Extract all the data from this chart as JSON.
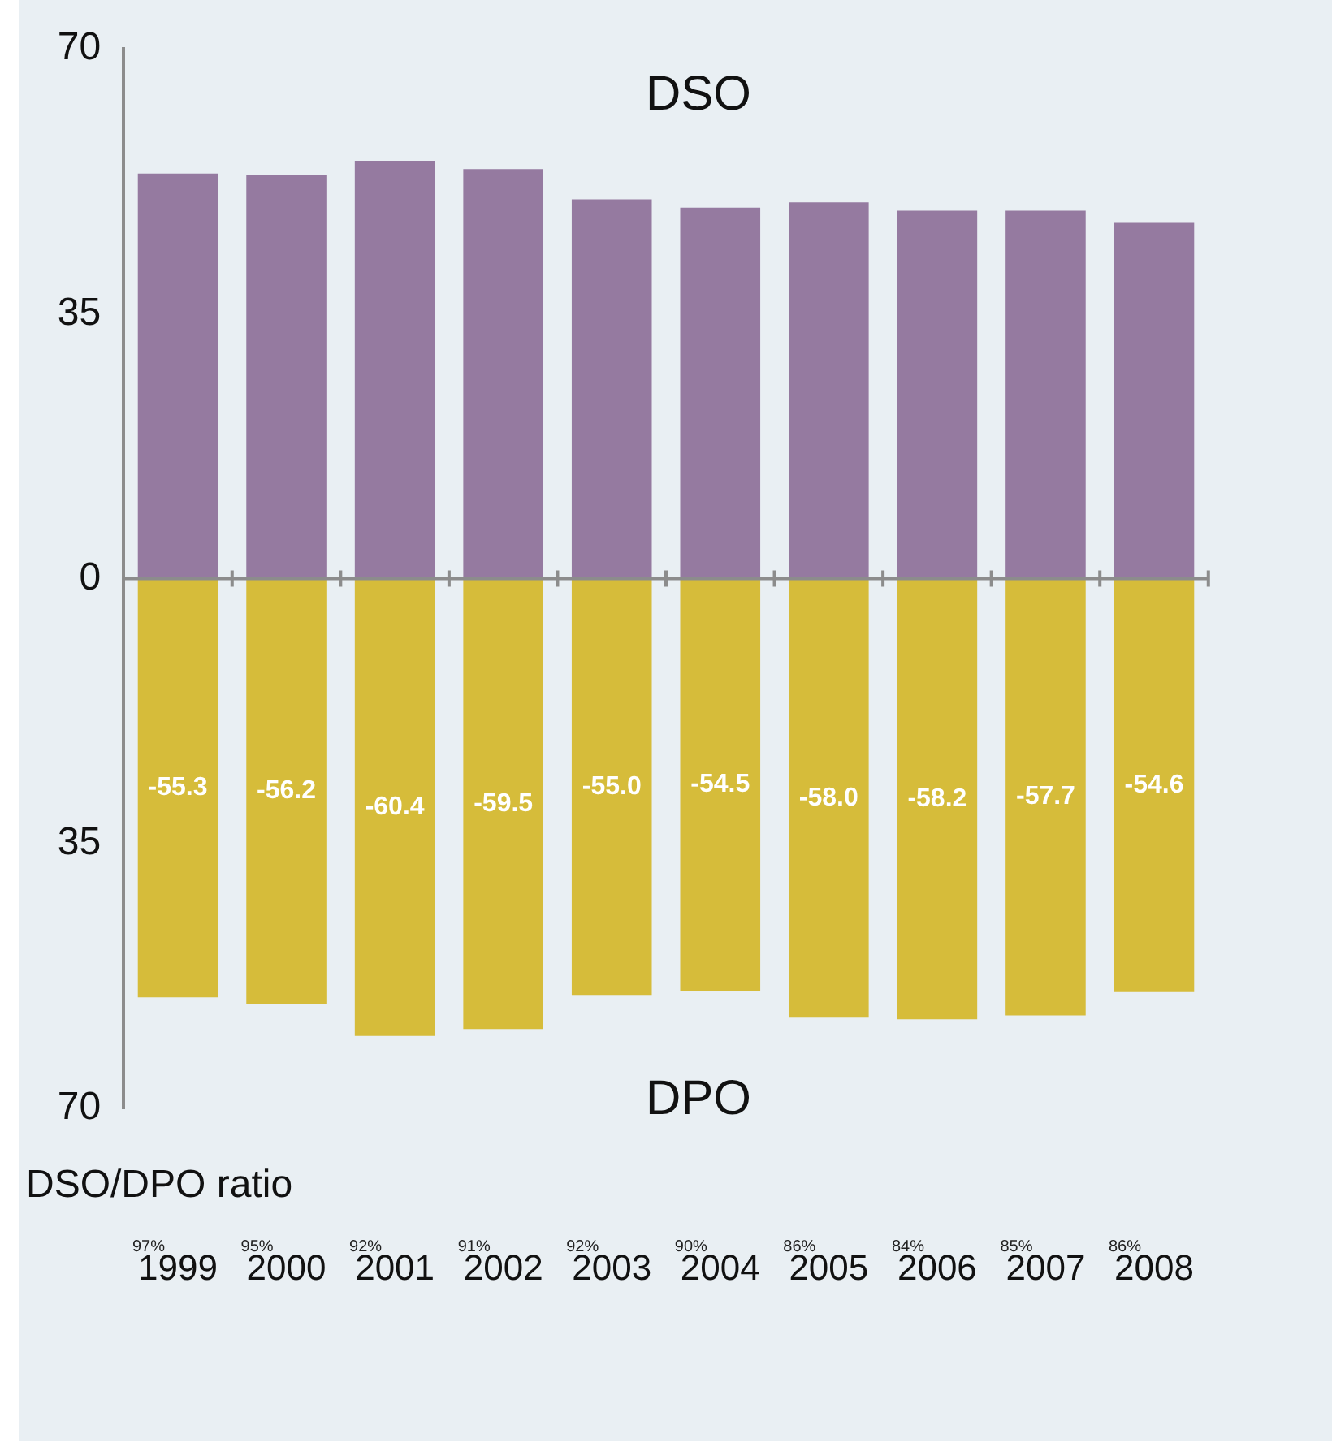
{
  "chart_data": {
    "type": "bar",
    "stacked": true,
    "categories": [
      "1999",
      "2000",
      "2001",
      "2002",
      "2003",
      "2004",
      "2005",
      "2006",
      "2007",
      "2008"
    ],
    "series": [
      {
        "name": "DSO",
        "color": "#957aa0",
        "values": [
          53.5,
          53.3,
          55.2,
          54.1,
          50.1,
          49.0,
          49.7,
          48.6,
          48.6,
          47.0
        ]
      },
      {
        "name": "DPO",
        "color": "#d6bc3a",
        "values": [
          -55.3,
          -56.2,
          -60.4,
          -59.5,
          -55.0,
          -54.5,
          -58.0,
          -58.2,
          -57.7,
          -54.6
        ],
        "value_labels": [
          "-55.3",
          "-56.2",
          "-60.4",
          "-59.5",
          "-55.0",
          "-54.5",
          "-58.0",
          "-58.2",
          "-57.7",
          "-54.6"
        ]
      }
    ],
    "ylim": [
      -70,
      70
    ],
    "yticks": [
      {
        "value": -70,
        "label": "70"
      },
      {
        "value": -35,
        "label": "35"
      },
      0,
      35,
      70
    ],
    "ref_lines": [
      {
        "axis": "y",
        "value": 0,
        "color": "#8c8c8c"
      }
    ],
    "grid": false,
    "legend": false,
    "annotations": [
      "DSO/DPO ratio",
      "97%",
      "95%",
      "92%",
      "91%",
      "92%",
      "90%",
      "86%",
      "84%",
      "85%",
      "86%"
    ]
  }
}
